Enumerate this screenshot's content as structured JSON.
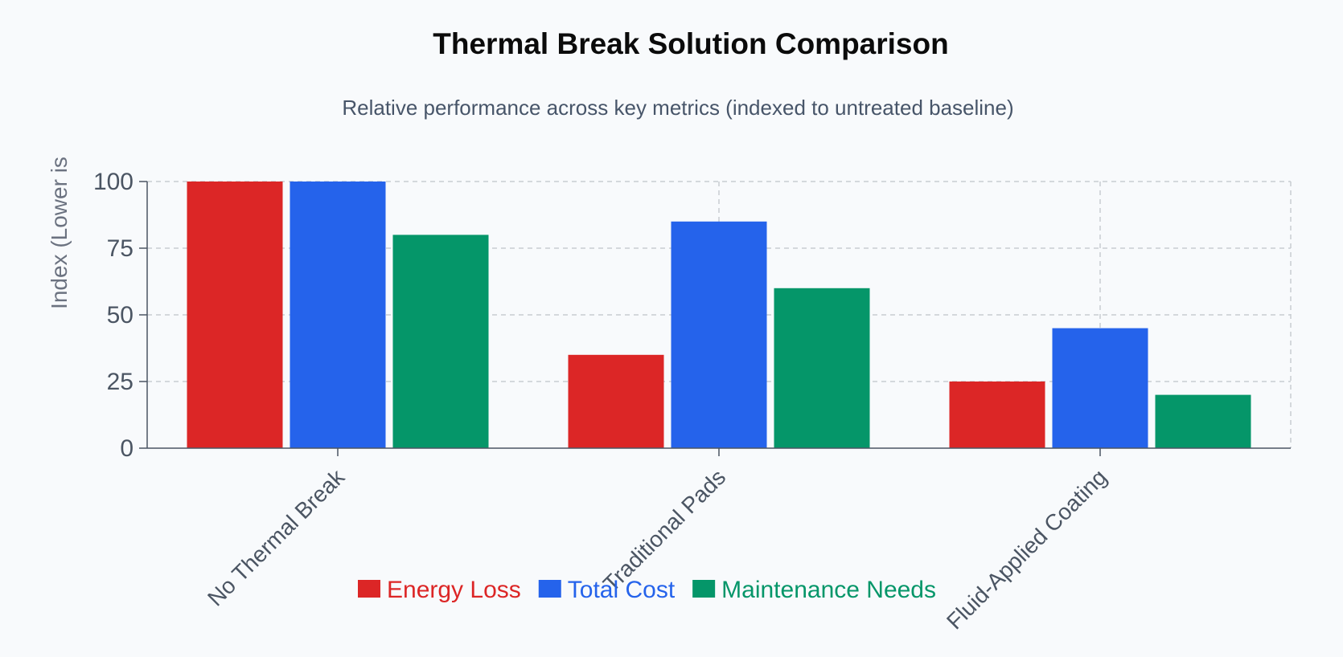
{
  "chart_data": {
    "type": "bar",
    "title": "Thermal Break Solution Comparison",
    "subtitle": "Relative performance across key metrics (indexed to untreated baseline)",
    "ylabel": "Index (Lower is",
    "xlabel": "",
    "ylim": [
      0,
      100
    ],
    "yticks": [
      0,
      25,
      50,
      75,
      100
    ],
    "grid": true,
    "legend_position": "bottom",
    "categories": [
      "No Thermal Break",
      "Traditional Pads",
      "Fluid-Applied Coating"
    ],
    "series": [
      {
        "name": "Energy Loss",
        "color": "#dc2626",
        "values": [
          100,
          35,
          25
        ]
      },
      {
        "name": "Total Cost",
        "color": "#2563eb",
        "values": [
          100,
          85,
          45
        ]
      },
      {
        "name": "Maintenance Needs",
        "color": "#059669",
        "values": [
          80,
          60,
          20
        ]
      }
    ]
  }
}
